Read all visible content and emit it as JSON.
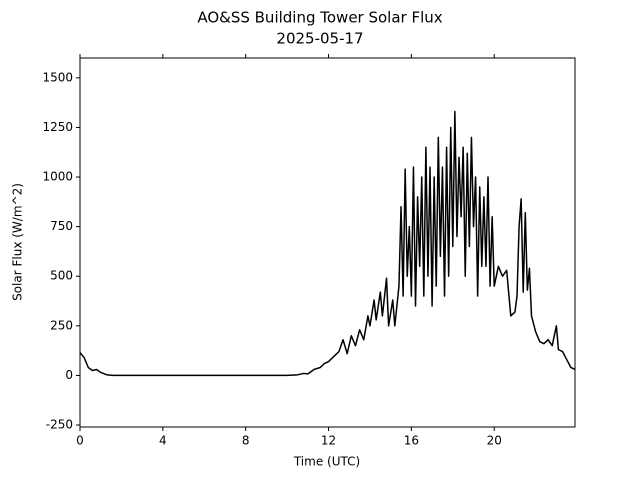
{
  "chart_data": {
    "type": "line",
    "title": "AO&SS Building Tower Solar Flux",
    "subtitle": "2025-05-17",
    "x_label": "Time (UTC)",
    "y_label": "Solar Flux (W/m^2)",
    "xlim": [
      0,
      23.9
    ],
    "ylim": [
      -260,
      1600
    ],
    "xticks": [
      0,
      4,
      8,
      12,
      16,
      20
    ],
    "yticks": [
      -250,
      0,
      250,
      500,
      750,
      1000,
      1250,
      1500
    ],
    "grid": false,
    "series": [
      {
        "color": "#000000",
        "x": [
          0,
          0.2,
          0.4,
          0.6,
          0.8,
          1.0,
          1.3,
          1.6,
          2,
          4,
          6,
          8,
          10,
          10.5,
          10.8,
          11,
          11.3,
          11.6,
          11.8,
          12,
          12.3,
          12.5,
          12.7,
          12.9,
          13.1,
          13.3,
          13.5,
          13.7,
          13.9,
          14.0,
          14.2,
          14.3,
          14.5,
          14.6,
          14.8,
          14.9,
          15.1,
          15.2,
          15.4,
          15.5,
          15.6,
          15.7,
          15.8,
          15.9,
          16.0,
          16.1,
          16.2,
          16.3,
          16.4,
          16.5,
          16.6,
          16.7,
          16.8,
          16.9,
          17.0,
          17.1,
          17.2,
          17.3,
          17.4,
          17.5,
          17.6,
          17.7,
          17.8,
          17.9,
          18.0,
          18.1,
          18.2,
          18.3,
          18.4,
          18.5,
          18.6,
          18.7,
          18.8,
          18.9,
          19.0,
          19.1,
          19.2,
          19.3,
          19.4,
          19.5,
          19.6,
          19.7,
          19.8,
          19.9,
          20.0,
          20.2,
          20.4,
          20.6,
          20.8,
          21.0,
          21.1,
          21.2,
          21.3,
          21.4,
          21.5,
          21.6,
          21.7,
          21.8,
          22.0,
          22.2,
          22.4,
          22.6,
          22.8,
          23.0,
          23.1,
          23.3,
          23.5,
          23.7,
          23.9
        ],
        "values": [
          115,
          90,
          40,
          25,
          30,
          15,
          3,
          0,
          0,
          0,
          0,
          0,
          0,
          3,
          10,
          8,
          30,
          40,
          60,
          70,
          100,
          120,
          180,
          110,
          200,
          150,
          230,
          180,
          300,
          250,
          380,
          280,
          420,
          300,
          490,
          250,
          380,
          250,
          450,
          850,
          400,
          1040,
          500,
          750,
          400,
          1050,
          350,
          900,
          550,
          1000,
          400,
          1150,
          500,
          1050,
          350,
          1000,
          450,
          1200,
          600,
          1050,
          400,
          1150,
          500,
          1250,
          650,
          1330,
          700,
          1100,
          800,
          1150,
          500,
          1120,
          650,
          1200,
          750,
          1000,
          400,
          950,
          550,
          900,
          550,
          1000,
          450,
          800,
          450,
          550,
          500,
          530,
          300,
          320,
          400,
          750,
          890,
          420,
          820,
          430,
          540,
          300,
          220,
          170,
          160,
          180,
          150,
          250,
          130,
          120,
          80,
          40,
          30
        ]
      }
    ]
  }
}
